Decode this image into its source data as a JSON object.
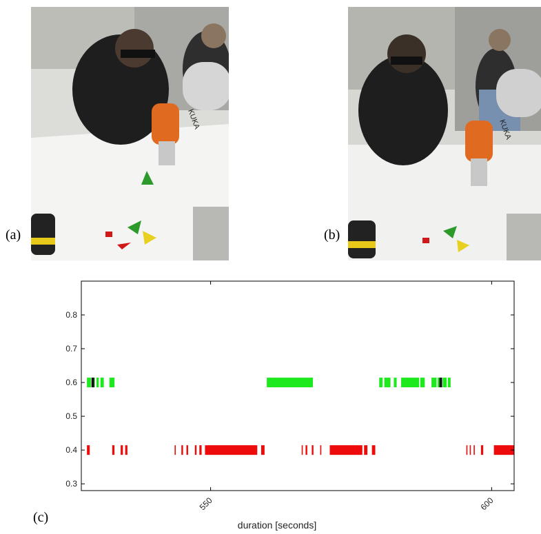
{
  "panels": {
    "a": {
      "label": "(a)",
      "logo": "KUKA"
    },
    "b": {
      "label": "(b)",
      "logo": "KUKA"
    },
    "c": {
      "label": "(c)"
    }
  },
  "colors": {
    "green": "#1ee81e",
    "red": "#ee0b0b",
    "black": "#111111",
    "axis": "#000000"
  },
  "chart_data": {
    "type": "event-raster",
    "xlabel": "duration [seconds]",
    "xlim": [
      527,
      604
    ],
    "ylim": [
      0.28,
      0.9
    ],
    "xticks": [
      550,
      600
    ],
    "yticks": [
      0.3,
      0.4,
      0.5,
      0.6,
      0.7,
      0.8
    ],
    "ytick_labels": [
      "0.3",
      "0.4",
      "0.5",
      "0.6",
      "0.7",
      "0.8"
    ],
    "xtick_labels": [
      "550",
      "600"
    ],
    "series": [
      {
        "y": 0.6,
        "color": "green",
        "segments": [
          [
            528.0,
            528.7
          ],
          [
            528.9,
            529.4
          ],
          [
            529.7,
            530.1
          ],
          [
            530.4,
            531.0
          ],
          [
            532.0,
            532.9
          ],
          [
            560.0,
            568.2
          ],
          [
            580.0,
            580.6
          ],
          [
            580.9,
            582.0
          ],
          [
            582.6,
            583.1
          ],
          [
            583.9,
            587.1
          ],
          [
            587.3,
            588.1
          ],
          [
            589.3,
            590.2
          ],
          [
            590.4,
            590.8
          ],
          [
            591.3,
            592.0
          ],
          [
            592.2,
            592.7
          ]
        ]
      },
      {
        "y": 0.6,
        "color": "black",
        "segments": [
          [
            528.8,
            529.3
          ],
          [
            590.7,
            591.2
          ]
        ]
      },
      {
        "y": 0.4,
        "color": "red",
        "segments": [
          [
            528.0,
            528.5
          ],
          [
            532.5,
            532.9
          ],
          [
            534.0,
            534.4
          ],
          [
            534.8,
            535.2
          ],
          [
            543.6,
            543.8
          ],
          [
            544.8,
            545.1
          ],
          [
            545.7,
            546.0
          ],
          [
            547.2,
            547.5
          ],
          [
            548.0,
            548.4
          ],
          [
            549.0,
            558.3
          ],
          [
            559.0,
            559.6
          ],
          [
            566.2,
            566.4
          ],
          [
            566.9,
            567.2
          ],
          [
            568.0,
            568.3
          ],
          [
            569.5,
            569.7
          ],
          [
            571.2,
            577.0
          ],
          [
            577.3,
            577.9
          ],
          [
            578.7,
            579.3
          ],
          [
            595.5,
            595.7
          ],
          [
            596.1,
            596.3
          ],
          [
            596.8,
            597.0
          ],
          [
            598.1,
            598.5
          ],
          [
            600.4,
            604.0
          ]
        ]
      }
    ]
  }
}
